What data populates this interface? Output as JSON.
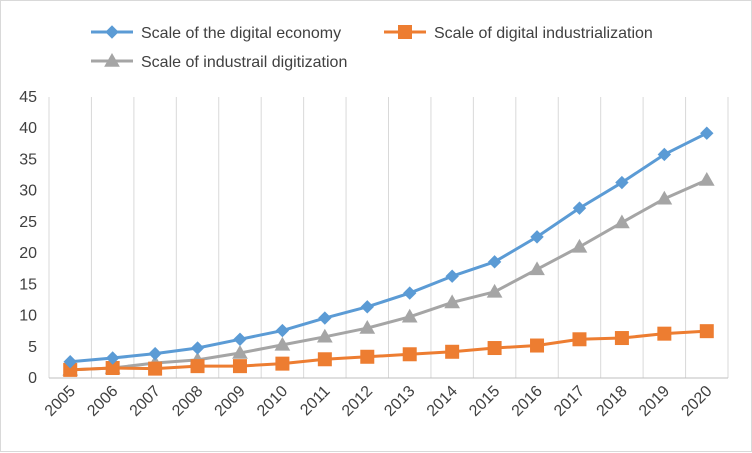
{
  "chart_data": {
    "type": "line",
    "title": "",
    "xlabel": "",
    "ylabel": "",
    "categories": [
      "2005",
      "2006",
      "2007",
      "2008",
      "2009",
      "2010",
      "2011",
      "2012",
      "2013",
      "2014",
      "2015",
      "2016",
      "2017",
      "2018",
      "2019",
      "2020"
    ],
    "ylim": [
      0,
      45
    ],
    "yticks": [
      0,
      5,
      10,
      15,
      20,
      25,
      30,
      35,
      40,
      45
    ],
    "grid": "vertical",
    "legend_position": "top",
    "series": [
      {
        "name": "Scale of the digital economy",
        "color": "#5b9bd5",
        "marker": "diamond",
        "values": [
          2.6,
          3.2,
          3.9,
          4.8,
          6.2,
          7.6,
          9.6,
          11.4,
          13.6,
          16.3,
          18.6,
          22.6,
          27.2,
          31.3,
          35.8,
          39.2
        ]
      },
      {
        "name": "Scale of digital industrialization",
        "color": "#ed7d31",
        "marker": "square",
        "values": [
          1.3,
          1.6,
          1.5,
          1.9,
          1.9,
          2.3,
          3.0,
          3.4,
          3.8,
          4.2,
          4.8,
          5.2,
          6.2,
          6.4,
          7.1,
          7.5
        ]
      },
      {
        "name": "Scale of industrail digitization",
        "color": "#a5a5a5",
        "marker": "triangle",
        "values": [
          1.3,
          1.6,
          2.4,
          2.9,
          4.0,
          5.3,
          6.6,
          8.0,
          9.8,
          12.1,
          13.8,
          17.4,
          21.0,
          24.9,
          28.7,
          31.7
        ]
      }
    ]
  }
}
